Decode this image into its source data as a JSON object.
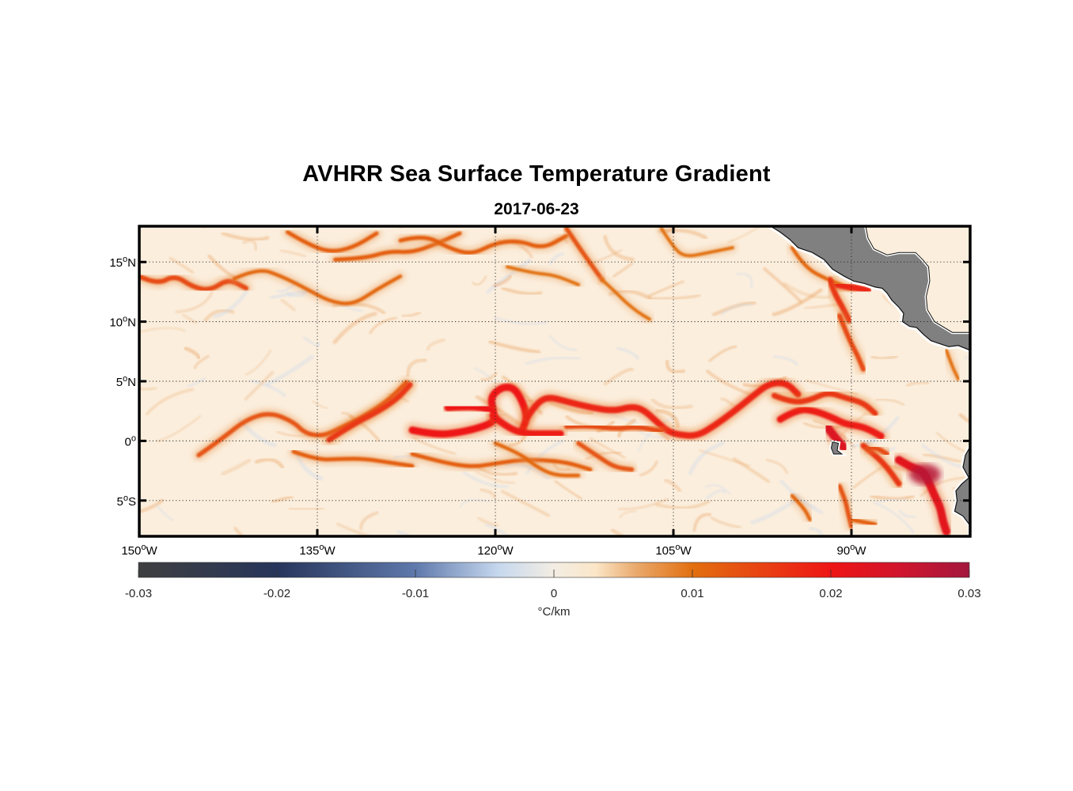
{
  "title": "AVHRR Sea Surface Temperature Gradient",
  "subtitle": "2017-06-23",
  "map": {
    "extent": {
      "lon": [
        -150,
        -80
      ],
      "lat": [
        -8,
        18
      ]
    },
    "lat_ticks": [
      {
        "value": 15,
        "num": "15",
        "hemi": "N"
      },
      {
        "value": 10,
        "num": "10",
        "hemi": "N"
      },
      {
        "value": 5,
        "num": "5",
        "hemi": "N"
      },
      {
        "value": 0,
        "num": "0",
        "hemi": ""
      },
      {
        "value": -5,
        "num": "5",
        "hemi": "S"
      }
    ],
    "lon_ticks": [
      {
        "value": -150,
        "num": "150",
        "hemi": "W"
      },
      {
        "value": -135,
        "num": "135",
        "hemi": "W"
      },
      {
        "value": -120,
        "num": "120",
        "hemi": "W"
      },
      {
        "value": -105,
        "num": "105",
        "hemi": "W"
      },
      {
        "value": -90,
        "num": "90",
        "hemi": "W"
      }
    ],
    "gridlines": "dotted",
    "land_color": "#808080",
    "background_color": "#fbeedd",
    "fronts": [
      {
        "strength": 0.012,
        "points": [
          [
            -137.5,
            17.5
          ],
          [
            -136,
            16.6
          ],
          [
            -134,
            15.8
          ],
          [
            -132,
            16.2
          ],
          [
            -130,
            17.4
          ]
        ]
      },
      {
        "strength": 0.014,
        "points": [
          [
            -150,
            13.8
          ],
          [
            -148.5,
            13.1
          ],
          [
            -147,
            13.9
          ],
          [
            -145.5,
            12.9
          ],
          [
            -144,
            12.6
          ],
          [
            -142.5,
            13.6
          ],
          [
            -141,
            12.8
          ]
        ]
      },
      {
        "strength": 0.011,
        "points": [
          [
            -142,
            13.6
          ],
          [
            -140,
            14.5
          ],
          [
            -138,
            13.8
          ],
          [
            -136,
            12.8
          ],
          [
            -134,
            11.7
          ],
          [
            -132,
            11.4
          ],
          [
            -130,
            12.7
          ],
          [
            -128,
            13.8
          ]
        ]
      },
      {
        "strength": 0.012,
        "points": [
          [
            -133.5,
            15.2
          ],
          [
            -131,
            15.3
          ],
          [
            -129,
            15.9
          ],
          [
            -127,
            15.8
          ],
          [
            -125,
            16.5
          ],
          [
            -123,
            17.4
          ]
        ]
      },
      {
        "strength": 0.012,
        "points": [
          [
            -128,
            16.8
          ],
          [
            -126,
            17.3
          ],
          [
            -124,
            16.2
          ],
          [
            -122,
            15.6
          ],
          [
            -120,
            16.6
          ],
          [
            -118,
            16.8
          ],
          [
            -116,
            16.1
          ],
          [
            -114,
            17.2
          ]
        ]
      },
      {
        "strength": 0.013,
        "points": [
          [
            -114,
            17.8
          ],
          [
            -113,
            16.3
          ],
          [
            -112,
            14.9
          ],
          [
            -111,
            13.5
          ]
        ]
      },
      {
        "strength": 0.01,
        "points": [
          [
            -111,
            13.5
          ],
          [
            -110,
            12.6
          ],
          [
            -109,
            11.6
          ],
          [
            -108,
            10.8
          ],
          [
            -107,
            10.2
          ]
        ]
      },
      {
        "strength": 0.01,
        "points": [
          [
            -119,
            14.6
          ],
          [
            -117,
            14.1
          ],
          [
            -115,
            13.9
          ],
          [
            -113,
            13.1
          ]
        ]
      },
      {
        "strength": 0.01,
        "points": [
          [
            -106,
            17.8
          ],
          [
            -105,
            16.2
          ],
          [
            -104,
            15.4
          ],
          [
            -102,
            15.8
          ],
          [
            -100,
            16.2
          ]
        ]
      },
      {
        "strength": 0.011,
        "points": [
          [
            -95,
            16.2
          ],
          [
            -94,
            14.6
          ],
          [
            -92,
            13.5
          ],
          [
            -90,
            12.8
          ]
        ]
      },
      {
        "strength": 0.016,
        "points": [
          [
            -91.8,
            13.5
          ],
          [
            -91.5,
            12.5
          ],
          [
            -90.8,
            11.3
          ],
          [
            -90.2,
            10.1
          ]
        ]
      },
      {
        "strength": 0.018,
        "points": [
          [
            -91.2,
            13.1
          ],
          [
            -90.3,
            12.9
          ],
          [
            -89.4,
            12.8
          ],
          [
            -88.6,
            12.6
          ]
        ]
      },
      {
        "strength": 0.014,
        "points": [
          [
            -91,
            10.5
          ],
          [
            -90.2,
            8.5
          ],
          [
            -89.5,
            7.2
          ],
          [
            -89,
            6
          ]
        ]
      },
      {
        "strength": 0.01,
        "points": [
          [
            -82,
            7.6
          ],
          [
            -81.5,
            6.2
          ],
          [
            -81,
            5.2
          ]
        ]
      },
      {
        "strength": 0.013,
        "points": [
          [
            -145,
            -1.2
          ],
          [
            -143,
            0.2
          ],
          [
            -141,
            1.8
          ],
          [
            -139,
            2.4
          ],
          [
            -137,
            1.6
          ],
          [
            -136,
            0.6
          ],
          [
            -134.5,
            0.4
          ],
          [
            -133,
            1.1
          ],
          [
            -131,
            2.1
          ],
          [
            -129,
            3.4
          ],
          [
            -127.5,
            4.9
          ]
        ]
      },
      {
        "strength": 0.016,
        "points": [
          [
            -134,
            0.1
          ],
          [
            -132,
            1.4
          ],
          [
            -130,
            2.4
          ],
          [
            -128.3,
            3.5
          ],
          [
            -127.2,
            4.7
          ]
        ]
      },
      {
        "strength": 0.02,
        "points": [
          [
            -127,
            0.9
          ],
          [
            -125,
            0.5
          ],
          [
            -123,
            0.7
          ],
          [
            -121,
            1.2
          ],
          [
            -120,
            1.7
          ],
          [
            -120.2,
            2.6
          ],
          [
            -120.4,
            3.7
          ],
          [
            -119.5,
            4.5
          ],
          [
            -118.5,
            4.5
          ],
          [
            -117.8,
            3.5
          ],
          [
            -117.3,
            2
          ],
          [
            -117.7,
            1
          ]
        ]
      },
      {
        "strength": 0.02,
        "points": [
          [
            -124,
            2.8
          ],
          [
            -122.5,
            2.9
          ],
          [
            -121,
            2.8
          ],
          [
            -120.3,
            2.5
          ]
        ]
      },
      {
        "strength": 0.019,
        "points": [
          [
            -120.2,
            2.1
          ],
          [
            -119,
            1.1
          ],
          [
            -117.5,
            0.6
          ],
          [
            -116,
            0.6
          ],
          [
            -114.5,
            0.6
          ]
        ]
      },
      {
        "strength": 0.018,
        "points": [
          [
            -117.3,
            2
          ],
          [
            -116.5,
            3.2
          ],
          [
            -115.5,
            3.7
          ],
          [
            -114,
            3.3
          ],
          [
            -112,
            2.8
          ],
          [
            -110,
            2.5
          ],
          [
            -108.5,
            2.9
          ],
          [
            -107.5,
            2.6
          ],
          [
            -106.5,
            1.7
          ],
          [
            -105.5,
            0.8
          ],
          [
            -104.5,
            0.5
          ],
          [
            -103,
            0.4
          ],
          [
            -101.5,
            1.3
          ],
          [
            -100,
            2.4
          ],
          [
            -98.5,
            3.6
          ],
          [
            -97,
            4.8
          ],
          [
            -95.5,
            4.9
          ],
          [
            -94.5,
            3.9
          ]
        ]
      },
      {
        "strength": 0.014,
        "points": [
          [
            -114,
            1.2
          ],
          [
            -112,
            1.3
          ],
          [
            -110,
            1.0
          ],
          [
            -108,
            1.2
          ],
          [
            -106,
            0.8
          ]
        ]
      },
      {
        "strength": 0.013,
        "points": [
          [
            -113,
            -0.2
          ],
          [
            -111.5,
            -1.2
          ],
          [
            -110,
            -2.2
          ],
          [
            -108.5,
            -2.4
          ]
        ]
      },
      {
        "strength": 0.012,
        "points": [
          [
            -137,
            -0.9
          ],
          [
            -135,
            -1.6
          ],
          [
            -133,
            -1.5
          ],
          [
            -131,
            -1.5
          ],
          [
            -129,
            -1.8
          ],
          [
            -127,
            -2.1
          ]
        ]
      },
      {
        "strength": 0.012,
        "points": [
          [
            -127,
            -1.1
          ],
          [
            -124.5,
            -1.8
          ],
          [
            -122,
            -2.2
          ],
          [
            -120,
            -1.9
          ],
          [
            -118,
            -1.6
          ],
          [
            -116,
            -1.6
          ],
          [
            -114,
            -1.8
          ],
          [
            -112,
            -2.4
          ]
        ]
      },
      {
        "strength": 0.011,
        "points": [
          [
            -120,
            -0.2
          ],
          [
            -118,
            -1
          ],
          [
            -116.5,
            -2.2
          ],
          [
            -115,
            -2.9
          ],
          [
            -113,
            -2.9
          ]
        ]
      },
      {
        "strength": 0.019,
        "points": [
          [
            -96,
            1.8
          ],
          [
            -94.5,
            2.7
          ],
          [
            -93,
            2.5
          ],
          [
            -91.5,
            1.9
          ],
          [
            -90.5,
            1.4
          ],
          [
            -89,
            1.2
          ],
          [
            -87.5,
            0.4
          ]
        ]
      },
      {
        "strength": 0.016,
        "points": [
          [
            -96.5,
            3.8
          ],
          [
            -95,
            3.2
          ],
          [
            -93.5,
            3.4
          ],
          [
            -92,
            4.1
          ],
          [
            -90.5,
            3.6
          ],
          [
            -89,
            3.2
          ],
          [
            -88,
            2.3
          ]
        ]
      },
      {
        "strength": 0.023,
        "points": [
          [
            -92,
            1.1
          ],
          [
            -91.3,
            0.2
          ],
          [
            -90.6,
            -0.6
          ]
        ]
      },
      {
        "strength": 0.022,
        "points": [
          [
            -86,
            -1.6
          ],
          [
            -85,
            -2.2
          ],
          [
            -84,
            -2.5
          ],
          [
            -83.5,
            -3.4
          ],
          [
            -83,
            -4.6
          ],
          [
            -82.5,
            -5.6
          ],
          [
            -82.3,
            -6.7
          ],
          [
            -82,
            -7.6
          ]
        ]
      },
      {
        "strength": 0.016,
        "points": [
          [
            -89,
            -0.4
          ],
          [
            -88,
            -1.2
          ],
          [
            -87,
            -2.2
          ],
          [
            -86,
            -3.6
          ]
        ]
      },
      {
        "strength": 0.014,
        "points": [
          [
            -88.7,
            -0.6
          ],
          [
            -88,
            -0.5
          ],
          [
            -87,
            -1.1
          ]
        ]
      },
      {
        "strength": 0.013,
        "points": [
          [
            -91,
            -3.8
          ],
          [
            -90.5,
            -5
          ],
          [
            -90.3,
            -6
          ],
          [
            -90,
            -7.2
          ]
        ]
      },
      {
        "strength": 0.011,
        "points": [
          [
            -95,
            -4.6
          ],
          [
            -94,
            -5.6
          ],
          [
            -93.5,
            -6.6
          ]
        ]
      },
      {
        "strength": 0.012,
        "points": [
          [
            -90,
            -6.6
          ],
          [
            -89,
            -6.8
          ],
          [
            -88,
            -7
          ]
        ]
      }
    ]
  },
  "colorbar": {
    "range": [
      -0.03,
      0.03
    ],
    "unit": "°C/km",
    "stops": [
      {
        "value": -0.03,
        "color": "#3f3f40"
      },
      {
        "value": -0.02,
        "color": "#27355b"
      },
      {
        "value": -0.01,
        "color": "#5f79ac"
      },
      {
        "value": -0.004,
        "color": "#c6d8ee"
      },
      {
        "value": 0,
        "color": "#f3ede3"
      },
      {
        "value": 0.003,
        "color": "#fbe6c8"
      },
      {
        "value": 0.006,
        "color": "#e9a86a"
      },
      {
        "value": 0.01,
        "color": "#e26f10"
      },
      {
        "value": 0.02,
        "color": "#ee1515"
      },
      {
        "value": 0.025,
        "color": "#d0152d"
      },
      {
        "value": 0.03,
        "color": "#a3173d"
      }
    ],
    "ticks": [
      {
        "value": -0.03,
        "label": "-0.03"
      },
      {
        "value": -0.02,
        "label": "-0.02"
      },
      {
        "value": -0.01,
        "label": "-0.01"
      },
      {
        "value": 0,
        "label": "0"
      },
      {
        "value": 0.01,
        "label": "0.01"
      },
      {
        "value": 0.02,
        "label": "0.02"
      },
      {
        "value": 0.03,
        "label": "0.03"
      }
    ]
  }
}
